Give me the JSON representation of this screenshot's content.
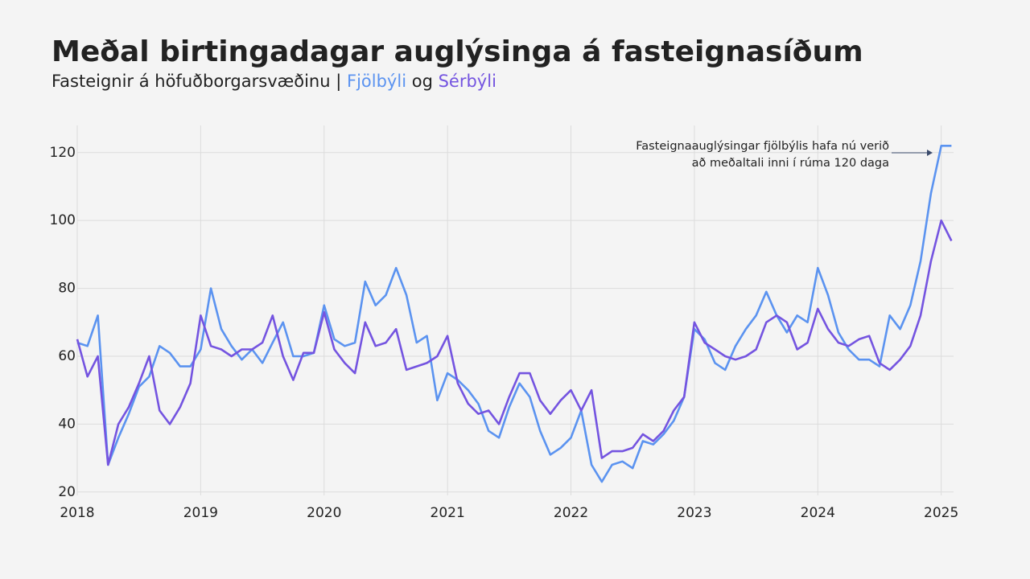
{
  "chart_data": {
    "type": "line",
    "title": "Meðal birtingadagar auglýsinga á fasteignasíðum",
    "subtitle": "Fasteignir á höfuðborgarsvæðinu |",
    "subtitle_joiner": "og",
    "annotation": [
      "Fasteignaauglýsingar fjölbýlis hafa nú verið",
      "að meðaltali inni í rúma 120 daga"
    ],
    "x": [
      2018,
      2018.083,
      2018.167,
      2018.25,
      2018.333,
      2018.417,
      2018.5,
      2018.583,
      2018.667,
      2018.75,
      2018.833,
      2018.917,
      2019,
      2019.083,
      2019.167,
      2019.25,
      2019.333,
      2019.417,
      2019.5,
      2019.583,
      2019.667,
      2019.75,
      2019.833,
      2019.917,
      2020,
      2020.083,
      2020.167,
      2020.25,
      2020.333,
      2020.417,
      2020.5,
      2020.583,
      2020.667,
      2020.75,
      2020.833,
      2020.917,
      2021,
      2021.083,
      2021.167,
      2021.25,
      2021.333,
      2021.417,
      2021.5,
      2021.583,
      2021.667,
      2021.75,
      2021.833,
      2021.917,
      2022,
      2022.083,
      2022.167,
      2022.25,
      2022.333,
      2022.417,
      2022.5,
      2022.583,
      2022.667,
      2022.75,
      2022.833,
      2022.917,
      2023,
      2023.083,
      2023.167,
      2023.25,
      2023.333,
      2023.417,
      2023.5,
      2023.583,
      2023.667,
      2023.75,
      2023.833,
      2023.917,
      2024,
      2024.083,
      2024.167,
      2024.25,
      2024.333,
      2024.417,
      2024.5,
      2024.583,
      2024.667,
      2024.75,
      2024.833,
      2024.917,
      2025,
      2025.083
    ],
    "series": [
      {
        "name": "Fjölbýli",
        "color": "#5b93f0",
        "values": [
          64,
          63,
          72,
          28,
          36,
          43,
          51,
          54,
          63,
          61,
          57,
          57,
          62,
          80,
          68,
          63,
          59,
          62,
          58,
          64,
          70,
          60,
          60,
          61,
          75,
          65,
          63,
          64,
          82,
          75,
          78,
          86,
          78,
          64,
          66,
          47,
          55,
          53,
          50,
          46,
          38,
          36,
          45,
          52,
          48,
          38,
          31,
          33,
          36,
          44,
          28,
          23,
          28,
          29,
          27,
          35,
          34,
          37,
          41,
          48,
          68,
          65,
          58,
          56,
          63,
          68,
          72,
          79,
          72,
          67,
          72,
          70,
          86,
          78,
          67,
          62,
          59,
          59,
          57,
          72,
          68,
          75,
          88,
          108,
          122,
          122
        ]
      },
      {
        "name": "Sérbýli",
        "color": "#7454e0",
        "values": [
          65,
          54,
          60,
          28,
          40,
          45,
          52,
          60,
          44,
          40,
          45,
          52,
          72,
          63,
          62,
          60,
          62,
          62,
          64,
          72,
          60,
          53,
          61,
          61,
          73,
          62,
          58,
          55,
          70,
          63,
          64,
          68,
          56,
          57,
          58,
          60,
          66,
          52,
          46,
          43,
          44,
          40,
          48,
          55,
          55,
          47,
          43,
          47,
          50,
          44,
          50,
          30,
          32,
          32,
          33,
          37,
          35,
          38,
          44,
          48,
          70,
          64,
          62,
          60,
          59,
          60,
          62,
          70,
          72,
          70,
          62,
          64,
          74,
          68,
          64,
          63,
          65,
          66,
          58,
          56,
          59,
          63,
          72,
          88,
          100,
          94
        ]
      }
    ],
    "xlim": [
      2018,
      2025.1
    ],
    "xticks": [
      2018,
      2019,
      2020,
      2021,
      2022,
      2023,
      2024,
      2025
    ],
    "ylim": [
      19,
      128
    ],
    "yticks": [
      20,
      40,
      60,
      80,
      100,
      120
    ],
    "grid": true
  }
}
